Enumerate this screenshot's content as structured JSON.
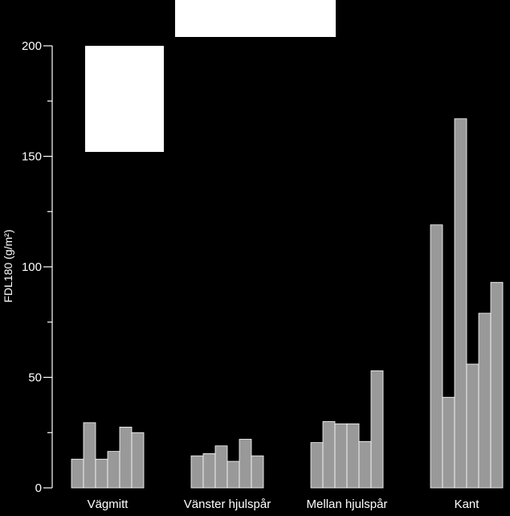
{
  "chart_data": {
    "type": "bar",
    "ylabel": "FDL180 (g/m²)",
    "ylim": [
      0,
      200
    ],
    "yticks": [
      0,
      50,
      100,
      150,
      200
    ],
    "grid": false,
    "colors": {
      "background": "#000000",
      "bar_fill": "#999999",
      "bar_edge": "#ffffff",
      "axis": "#ffffff",
      "text": "#ffffff",
      "boxes": "#ffffff"
    },
    "groups": [
      {
        "label": "Vägmitt",
        "values": [
          13,
          29.5,
          13,
          16.5,
          27.5,
          25
        ]
      },
      {
        "label": "Vänster hjulspår",
        "values": [
          14.5,
          15.5,
          19,
          12,
          22,
          14.5
        ]
      },
      {
        "label": "Mellan hjulspår",
        "values": [
          20.5,
          30,
          29,
          29,
          21,
          53
        ]
      },
      {
        "label": "Kant",
        "values": [
          119,
          41,
          167,
          56,
          79,
          93
        ]
      }
    ]
  }
}
